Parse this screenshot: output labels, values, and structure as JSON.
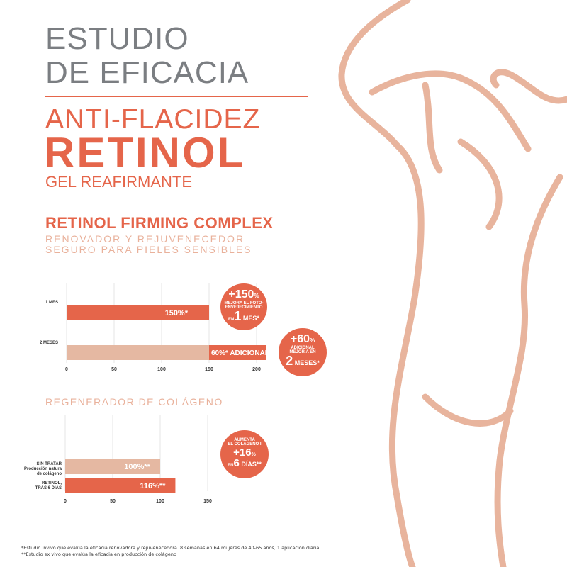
{
  "header": {
    "line1": "ESTUDIO",
    "line2": "DE EFICACIA",
    "line3": "ANTI-FLACIDEZ",
    "product": "RETINOL",
    "subtitle": "GEL REAFIRMANTE"
  },
  "complex": {
    "title": "RETINOL FIRMING COMPLEX",
    "line1": "RENOVADOR Y REJUVENECEDOR",
    "line2": "SEGURO PARA PIELES SENSIBLES"
  },
  "colors": {
    "accent": "#e5654a",
    "light": "#e5b8a2",
    "gray": "#7b7e82"
  },
  "chart_data": [
    {
      "type": "bar",
      "orientation": "horizontal",
      "stacked": true,
      "categories": [
        "1 MES",
        "2 MESES"
      ],
      "series": [
        {
          "values": [
            150,
            150
          ]
        },
        {
          "values": [
            0,
            60
          ]
        }
      ],
      "data_labels": [
        "150%*",
        "60%* ADICIONAL"
      ],
      "xticks": [
        0,
        50,
        100,
        150,
        200
      ],
      "xlim": [
        0,
        210
      ]
    },
    {
      "type": "bar",
      "orientation": "horizontal",
      "categories": [
        "SIN TRATAR Producción natura de colágeno",
        "RETINOL, TRAS 6 DÍAS"
      ],
      "values": [
        100,
        116
      ],
      "data_labels": [
        "100%**",
        "116%**"
      ],
      "xticks": [
        0,
        50,
        100,
        150
      ],
      "xlim": [
        0,
        150
      ],
      "title": "REGENERADOR DE COLÁGENO"
    }
  ],
  "bubbles": {
    "b1": {
      "big": "+150",
      "pct": "%",
      "l1": "MEJORA EL FOTO-",
      "l2": "ENVEJECIMIENTO",
      "en": "EN",
      "num": "1",
      "unit": "MES*"
    },
    "b2": {
      "big": "+60",
      "pct": "%",
      "l1": "ADICIONAL",
      "l2": "MEJORÍA EN",
      "num": "2",
      "unit": "MESES*"
    },
    "b3": {
      "l1": "AUMENTA",
      "l2": "EL COLAGENO I",
      "big": "+16",
      "pct": "%",
      "en": "EN",
      "num": "6",
      "unit": "DÍAS**"
    }
  },
  "footnotes": [
    "*Estudio invivo que evalúa la eficacia renovadora y rejuvenecedora. 8 semanas en 64 mujeres de 40-65 años, 1 aplicación diaria",
    "**Estudio ex vivo que evalúa la eficacia en producción de colágeno"
  ]
}
